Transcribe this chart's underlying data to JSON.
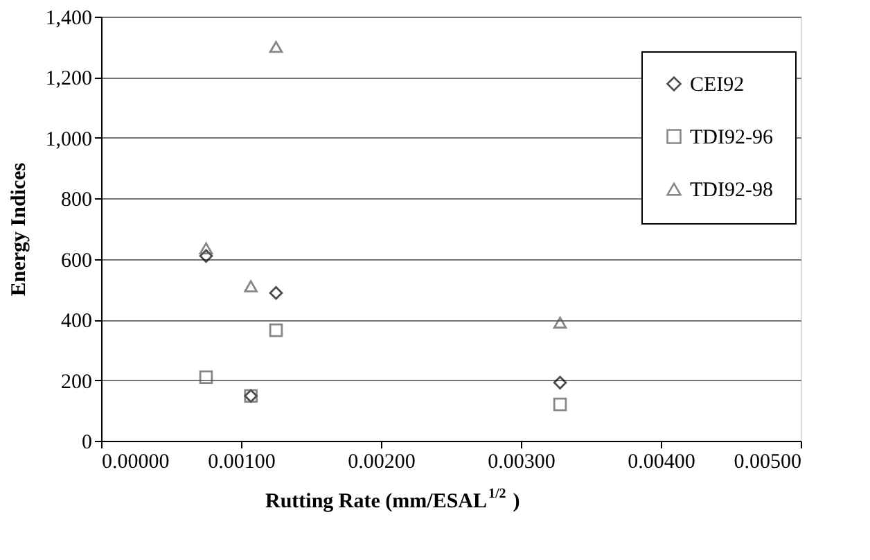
{
  "chart_data": {
    "type": "scatter",
    "xlabel": "Rutting Rate (mm/ESAL$^{1/2}$)",
    "ylabel": "Energy Indices",
    "x": [
      0.00075,
      0.00107,
      0.00125,
      0.00328
    ],
    "series": [
      {
        "name": "CEI92",
        "color": "#000000",
        "marker": "diamond",
        "values": [
          610,
          148,
          488,
          192
        ]
      },
      {
        "name": "TDI92-96",
        "color": "#555555",
        "marker": "square",
        "values": [
          210,
          148,
          365,
          120
        ]
      },
      {
        "name": "TDI92-98",
        "color": "#555555",
        "marker": "triangle",
        "values": [
          635,
          510,
          1300,
          390
        ]
      }
    ],
    "xlim": [
      0,
      0.005
    ],
    "xticks": [
      {
        "value": 0,
        "label": "0.00000"
      },
      {
        "value": 0.001,
        "label": "0.00100"
      },
      {
        "value": 0.002,
        "label": "0.00200"
      },
      {
        "value": 0.003,
        "label": "0.00300"
      },
      {
        "value": 0.004,
        "label": "0.00400"
      },
      {
        "value": 0.005,
        "label": "0.00500"
      }
    ],
    "ylim": [
      0,
      1400
    ],
    "yticks": [
      0,
      200,
      400,
      600,
      800,
      {
        "value": 1000,
        "label": "1,000"
      },
      {
        "value": 1200,
        "label": "1,200"
      },
      {
        "value": 1400,
        "label": "1,400"
      }
    ],
    "grid": "y",
    "legend": "top right"
  }
}
